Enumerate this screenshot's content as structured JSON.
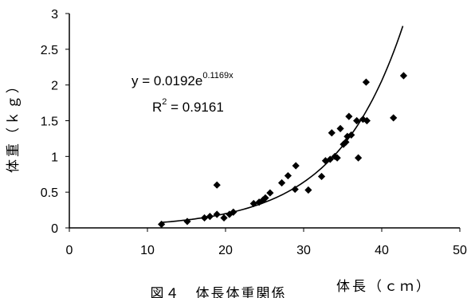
{
  "chart_data": {
    "type": "scatter",
    "title": "",
    "caption": "図４　体長体重関係",
    "xlabel": "体長（ｃｍ）",
    "ylabel": "体重（ｋｇ）",
    "xlim": [
      0,
      50
    ],
    "ylim": [
      0,
      3
    ],
    "x_ticks": [
      "0",
      "10",
      "20",
      "30",
      "40",
      "50"
    ],
    "y_ticks": [
      "0",
      "0.5",
      "1",
      "1.5",
      "2",
      "2.5",
      "3"
    ],
    "grid": false,
    "legend": "none",
    "marker": "diamond",
    "marker_color": "#000000",
    "points": [
      [
        11.8,
        0.05
      ],
      [
        15.1,
        0.09
      ],
      [
        17.3,
        0.14
      ],
      [
        18.0,
        0.16
      ],
      [
        18.9,
        0.19
      ],
      [
        18.9,
        0.6
      ],
      [
        19.8,
        0.14
      ],
      [
        20.5,
        0.19
      ],
      [
        21.0,
        0.22
      ],
      [
        23.6,
        0.34
      ],
      [
        24.3,
        0.36
      ],
      [
        24.8,
        0.39
      ],
      [
        25.1,
        0.42
      ],
      [
        25.7,
        0.49
      ],
      [
        27.2,
        0.63
      ],
      [
        28.0,
        0.73
      ],
      [
        28.9,
        0.54
      ],
      [
        29.0,
        0.87
      ],
      [
        30.6,
        0.53
      ],
      [
        32.3,
        0.72
      ],
      [
        32.8,
        0.94
      ],
      [
        33.4,
        0.96
      ],
      [
        33.6,
        1.33
      ],
      [
        34.0,
        1.0
      ],
      [
        34.3,
        0.98
      ],
      [
        34.7,
        1.39
      ],
      [
        35.1,
        1.17
      ],
      [
        35.4,
        1.2
      ],
      [
        35.6,
        1.28
      ],
      [
        35.8,
        1.56
      ],
      [
        36.1,
        1.3
      ],
      [
        36.8,
        1.5
      ],
      [
        37.0,
        0.98
      ],
      [
        37.6,
        1.52
      ],
      [
        38.0,
        2.04
      ],
      [
        38.1,
        1.5
      ],
      [
        41.5,
        1.54
      ],
      [
        42.8,
        2.13
      ]
    ],
    "trendline": {
      "type": "exponential",
      "a": 0.0192,
      "b": 0.1169,
      "x_range": [
        11.8,
        42.7
      ],
      "equation_prefix": "y = 0.0192e",
      "equation_exponent": "0.1169x",
      "r2_prefix": "R",
      "r2_exponent": "2",
      "r2_suffix": " = 0.9161"
    }
  }
}
